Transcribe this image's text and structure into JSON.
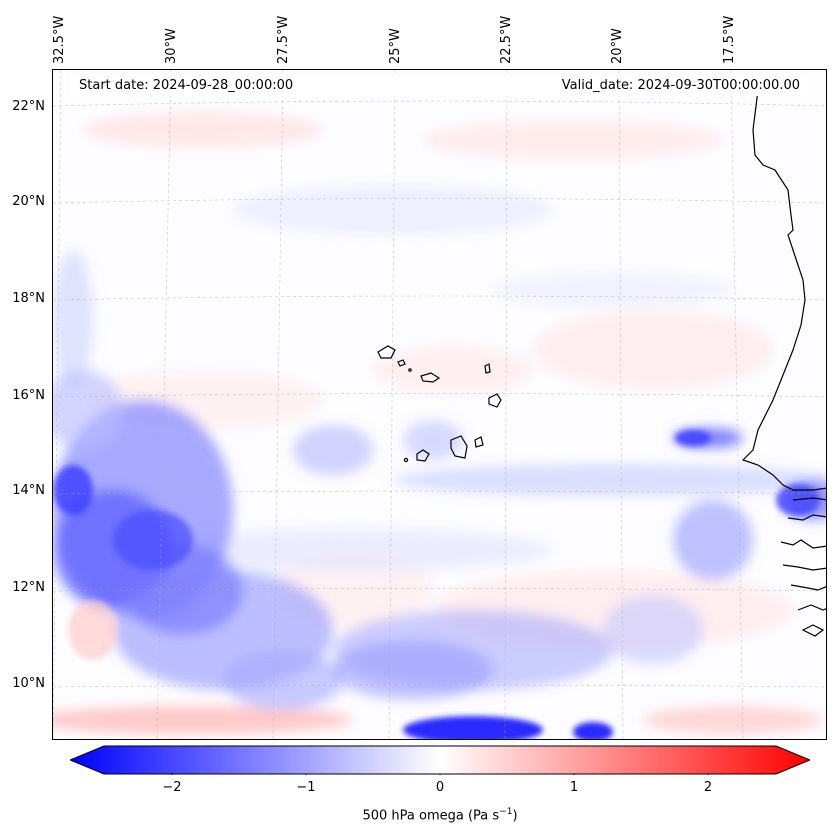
{
  "header": {
    "start_date": "Start date: 2024-09-28_00:00:00",
    "valid_date": "Valid_date: 2024-09-30T00:00:00.00"
  },
  "lat_labels": [
    "22°N",
    "20°N",
    "18°N",
    "16°N",
    "14°N",
    "12°N",
    "10°N"
  ],
  "lon_labels": [
    "32.5°W",
    "30°W",
    "27.5°W",
    "25°W",
    "22.5°W",
    "20°W",
    "17.5°W"
  ],
  "colorbar": {
    "label_prefix": "500 hPa omega (Pa s",
    "label_exp": "−1",
    "label_suffix": ")",
    "ticks": [
      "−2",
      "−1",
      "0",
      "1",
      "2"
    ],
    "range": [
      -2.7,
      2.7
    ],
    "colors": {
      "min": "#0000ff",
      "mid": "#ffffff",
      "max": "#ff0000"
    }
  },
  "map": {
    "coastline_color": "#000000",
    "gridline_color": "#b0b0b0"
  }
}
